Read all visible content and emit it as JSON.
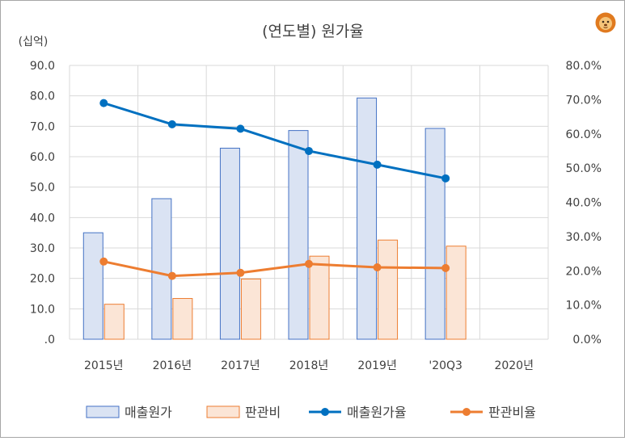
{
  "chart_data": {
    "type": "bar",
    "title": "(연도별) 원가율",
    "y_unit_label": "(십억)",
    "categories": [
      "2015년",
      "2016년",
      "2017년",
      "2018년",
      "2019년",
      "'20Q3",
      "2020년"
    ],
    "left_axis": {
      "ylim": [
        0,
        90
      ],
      "ticks": [
        ".0",
        "10.0",
        "20.0",
        "30.0",
        "40.0",
        "50.0",
        "60.0",
        "70.0",
        "80.0",
        "90.0"
      ]
    },
    "right_axis": {
      "ylim": [
        0,
        0.8
      ],
      "ticks": [
        "0.0%",
        "10.0%",
        "20.0%",
        "30.0%",
        "40.0%",
        "50.0%",
        "60.0%",
        "70.0%",
        "80.0%"
      ]
    },
    "series": [
      {
        "name": "매출원가",
        "kind": "bar",
        "axis": "left",
        "values": [
          35.0,
          46.2,
          62.8,
          68.6,
          79.3,
          69.3,
          null
        ]
      },
      {
        "name": "판관비",
        "kind": "bar",
        "axis": "left",
        "values": [
          11.5,
          13.4,
          19.8,
          27.3,
          32.6,
          30.6,
          null
        ]
      },
      {
        "name": "매출원가율",
        "kind": "line",
        "axis": "right",
        "values": [
          0.69,
          0.628,
          0.615,
          0.55,
          0.51,
          0.47,
          null
        ]
      },
      {
        "name": "판관비율",
        "kind": "line",
        "axis": "right",
        "values": [
          0.227,
          0.185,
          0.194,
          0.22,
          0.21,
          0.208,
          null
        ]
      }
    ],
    "grid": true,
    "legend_position": "bottom",
    "colors": {
      "cost_bar_fill": "#dae3f3",
      "cost_bar_stroke": "#4472c4",
      "sga_bar_fill": "#fbe5d6",
      "sga_bar_stroke": "#ed7d31",
      "cost_line": "#0070c0",
      "sga_line": "#ed7d31",
      "grid": "#d9d9d9",
      "text": "#404040"
    }
  },
  "mascot_icon": "lion-face-icon"
}
